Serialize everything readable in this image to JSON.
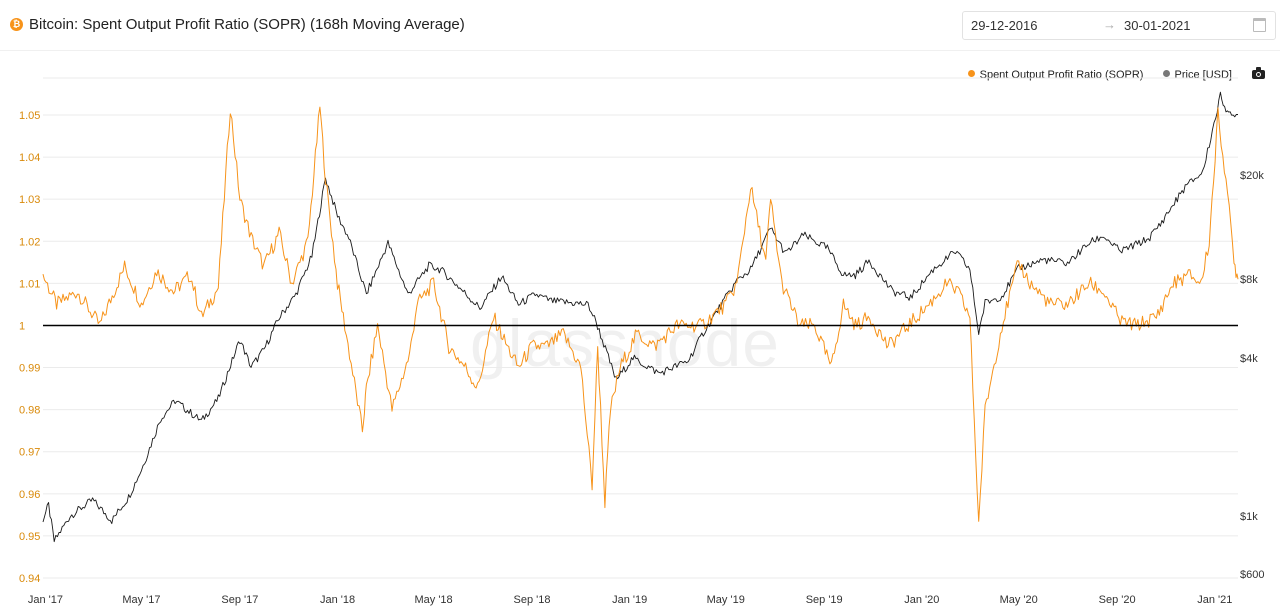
{
  "header": {
    "coin_icon_glyph": "₿",
    "title": "Bitcoin: Spent Output Profit Ratio (SOPR) (168h Moving Average)",
    "date_start": "29-12-2016",
    "date_arrow": "→",
    "date_end": "30-01-2021"
  },
  "watermark": "glassnode",
  "colors": {
    "sopr": "#f7931a",
    "price": "#1a1a1a",
    "baseline": "#000000",
    "grid": "#ebebeb",
    "left_axis_text": "#d98a0b",
    "right_axis_text": "#333333"
  },
  "icons": {
    "coin": "bitcoin-icon",
    "calendar": "calendar-icon",
    "camera": "camera-icon",
    "arrow": "arrow-right-icon"
  },
  "chart_data": {
    "type": "line",
    "title": "Bitcoin: Spent Output Profit Ratio (SOPR) (168h Moving Average)",
    "legend": {
      "placement": "top-right"
    },
    "grid": true,
    "x_ticks": [
      "Jan '17",
      "May '17",
      "Sep '17",
      "Jan '18",
      "May '18",
      "Sep '18",
      "Jan '19",
      "May '19",
      "Sep '19",
      "Jan '20",
      "May '20",
      "Sep '20",
      "Jan '21"
    ],
    "x_range": [
      "2016-12-29",
      "2021-01-30"
    ],
    "y_left": {
      "ticks": [
        "1.05",
        "1.04",
        "1.03",
        "1.02",
        "1.01",
        "1",
        "0.99",
        "0.98",
        "0.97",
        "0.96",
        "0.95",
        "0.94"
      ],
      "range": [
        0.94,
        1.05
      ],
      "reference_line": 1
    },
    "y_right": {
      "scale": "log",
      "ticks": [
        "$20k",
        "$8k",
        "$4k",
        "$1k",
        "$600"
      ],
      "tick_values": [
        20000,
        8000,
        4000,
        1000,
        600
      ]
    },
    "series": [
      {
        "name": "Spent Output Profit Ratio (SOPR)",
        "axis": "left",
        "x": [
          "2016-12-29",
          "2017-01-15",
          "2017-02-10",
          "2017-03-10",
          "2017-04-10",
          "2017-05-01",
          "2017-05-20",
          "2017-06-10",
          "2017-07-01",
          "2017-07-15",
          "2017-08-05",
          "2017-08-20",
          "2017-09-01",
          "2017-09-15",
          "2017-10-01",
          "2017-10-20",
          "2017-11-05",
          "2017-11-25",
          "2017-12-10",
          "2017-12-17",
          "2018-01-01",
          "2018-01-10",
          "2018-02-01",
          "2018-02-06",
          "2018-02-20",
          "2018-03-10",
          "2018-04-01",
          "2018-04-10",
          "2018-05-01",
          "2018-05-20",
          "2018-06-10",
          "2018-06-25",
          "2018-07-15",
          "2018-08-01",
          "2018-08-15",
          "2018-09-01",
          "2018-09-20",
          "2018-10-10",
          "2018-11-01",
          "2018-11-15",
          "2018-11-22",
          "2018-12-01",
          "2018-12-08",
          "2018-12-20",
          "2019-01-10",
          "2019-02-01",
          "2019-03-01",
          "2019-04-01",
          "2019-05-01",
          "2019-05-15",
          "2019-06-01",
          "2019-06-20",
          "2019-06-26",
          "2019-07-10",
          "2019-08-01",
          "2019-08-20",
          "2019-09-10",
          "2019-09-25",
          "2019-10-10",
          "2019-10-28",
          "2019-11-20",
          "2019-12-15",
          "2020-01-10",
          "2020-02-01",
          "2020-02-15",
          "2020-03-01",
          "2020-03-12",
          "2020-03-20",
          "2020-04-10",
          "2020-05-01",
          "2020-05-15",
          "2020-06-10",
          "2020-07-01",
          "2020-07-28",
          "2020-08-15",
          "2020-09-05",
          "2020-09-25",
          "2020-10-20",
          "2020-11-10",
          "2020-12-01",
          "2020-12-15",
          "2020-12-25",
          "2021-01-05",
          "2021-01-15",
          "2021-01-25",
          "2021-01-30"
        ],
        "y": [
          1.012,
          1.005,
          1.008,
          1.0,
          1.014,
          1.005,
          1.013,
          1.008,
          1.012,
          1.002,
          1.009,
          1.052,
          1.03,
          1.021,
          1.014,
          1.022,
          1.01,
          1.02,
          1.052,
          1.035,
          1.01,
          1.0,
          0.975,
          0.985,
          1.0,
          0.98,
          0.993,
          1.005,
          1.01,
          0.995,
          0.99,
          0.985,
          1.002,
          0.995,
          0.99,
          0.995,
          0.995,
          0.998,
          0.99,
          0.962,
          0.995,
          0.958,
          0.98,
          0.99,
          0.998,
          0.995,
          1.0,
          1.0,
          1.005,
          1.01,
          1.033,
          1.015,
          1.03,
          1.01,
          1.0,
          1.0,
          0.99,
          1.005,
          1.0,
          1.002,
          0.995,
          1.0,
          1.005,
          1.01,
          1.008,
          1.002,
          0.953,
          0.98,
          1.0,
          1.015,
          1.01,
          1.005,
          1.005,
          1.01,
          1.008,
          1.001,
          1.0,
          1.002,
          1.01,
          1.012,
          1.01,
          1.02,
          1.05,
          1.035,
          1.015,
          1.011
        ]
      },
      {
        "name": "Price [USD]",
        "axis": "right",
        "x": [
          "2016-12-29",
          "2017-01-05",
          "2017-01-12",
          "2017-02-01",
          "2017-03-01",
          "2017-03-25",
          "2017-04-15",
          "2017-05-01",
          "2017-05-25",
          "2017-06-12",
          "2017-07-15",
          "2017-08-05",
          "2017-09-01",
          "2017-09-15",
          "2017-10-01",
          "2017-10-20",
          "2017-11-10",
          "2017-11-30",
          "2017-12-17",
          "2018-01-01",
          "2018-01-15",
          "2018-02-06",
          "2018-03-05",
          "2018-03-30",
          "2018-04-25",
          "2018-05-10",
          "2018-06-01",
          "2018-06-28",
          "2018-07-25",
          "2018-08-15",
          "2018-09-05",
          "2018-09-25",
          "2018-10-20",
          "2018-11-10",
          "2018-11-20",
          "2018-12-15",
          "2019-01-05",
          "2019-02-07",
          "2019-03-15",
          "2019-04-03",
          "2019-05-15",
          "2019-06-01",
          "2019-06-26",
          "2019-07-15",
          "2019-08-06",
          "2019-09-05",
          "2019-09-25",
          "2019-10-10",
          "2019-10-27",
          "2019-11-25",
          "2019-12-18",
          "2020-01-15",
          "2020-02-12",
          "2020-03-01",
          "2020-03-12",
          "2020-03-20",
          "2020-04-10",
          "2020-05-01",
          "2020-06-01",
          "2020-07-01",
          "2020-07-28",
          "2020-08-15",
          "2020-09-05",
          "2020-10-10",
          "2020-10-25",
          "2020-11-25",
          "2020-12-17",
          "2021-01-08",
          "2021-01-15",
          "2021-01-22",
          "2021-01-30"
        ],
        "y": [
          970,
          1100,
          800,
          1000,
          1150,
          960,
          1180,
          1500,
          2350,
          2750,
          2300,
          2800,
          4700,
          3700,
          4300,
          5700,
          7000,
          9800,
          19500,
          14000,
          11500,
          7000,
          11000,
          7000,
          9000,
          8700,
          7500,
          6200,
          8200,
          6400,
          7000,
          6600,
          6500,
          6400,
          5500,
          3300,
          4000,
          3500,
          3900,
          5000,
          7900,
          8700,
          12500,
          10000,
          11800,
          10500,
          8300,
          8300,
          9400,
          7200,
          6800,
          8700,
          10200,
          8700,
          5000,
          6500,
          6900,
          8800,
          9500,
          9200,
          11000,
          11700,
          10200,
          11400,
          13000,
          18000,
          20500,
          40000,
          36000,
          33000,
          34000
        ]
      }
    ]
  }
}
